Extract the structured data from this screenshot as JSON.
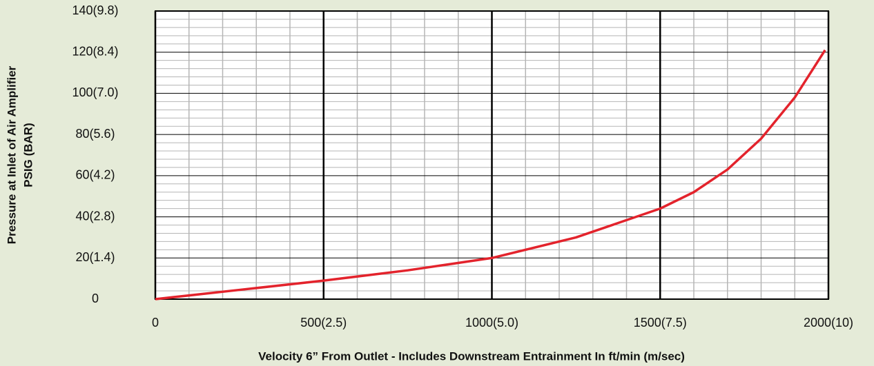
{
  "chart_data": {
    "type": "line",
    "xlabel": "Velocity 6” From Outlet - Includes Downstream Entrainment In ft/min (m/sec)",
    "ylabel": [
      "Pressure at Inlet of Air Amplifier",
      "PSIG (BAR)"
    ],
    "xlim": [
      0,
      2000
    ],
    "ylim": [
      0,
      140
    ],
    "xticks": [
      0,
      {
        "value": 500,
        "label": "500(2.5)"
      },
      {
        "value": 1000,
        "label": "1000(5.0)"
      },
      {
        "value": 1500,
        "label": "1500(7.5)"
      },
      {
        "value": 2000,
        "label": "2000(10)"
      }
    ],
    "yticks": [
      0,
      {
        "value": 20,
        "label": "20(1.4)"
      },
      {
        "value": 40,
        "label": "40(2.8)"
      },
      {
        "value": 60,
        "label": "60(4.2)"
      },
      {
        "value": 80,
        "label": "80(5.6)"
      },
      {
        "value": 100,
        "label": "100(7.0)"
      },
      {
        "value": 120,
        "label": "120(8.4)"
      },
      {
        "value": 140,
        "label": "140(9.8)"
      }
    ],
    "xminorticks": [
      100,
      200,
      300,
      400,
      600,
      700,
      800,
      900,
      1100,
      1200,
      1300,
      1400,
      1600,
      1700,
      1800,
      1900
    ],
    "yminorticks": [
      4,
      8,
      12,
      16,
      24,
      28,
      32,
      36,
      44,
      48,
      52,
      56,
      64,
      68,
      72,
      76,
      84,
      88,
      92,
      96,
      104,
      108,
      112,
      116,
      124,
      128,
      132,
      136
    ],
    "grid": true,
    "series": [
      {
        "color": "#e3232c",
        "x": [
          0,
          250,
          500,
          750,
          1000,
          1250,
          1500,
          1600,
          1700,
          1800,
          1900,
          1990
        ],
        "values": [
          0,
          4.5,
          9,
          14,
          20,
          30,
          44,
          52,
          63,
          78,
          98,
          121
        ]
      }
    ]
  }
}
